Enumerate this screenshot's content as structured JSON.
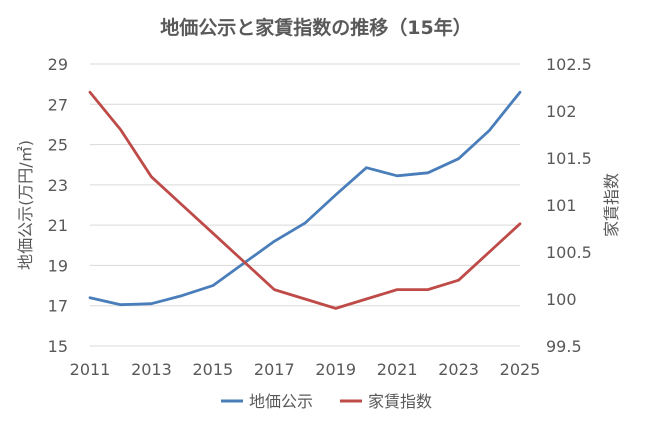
{
  "chart_data": {
    "type": "line",
    "title": "地価公示と家賃指数の推移（15年）",
    "x": [
      2011,
      2012,
      2013,
      2014,
      2015,
      2016,
      2017,
      2018,
      2019,
      2020,
      2021,
      2022,
      2023,
      2024,
      2025
    ],
    "x_tick_labels": [
      "2011",
      "2013",
      "2015",
      "2017",
      "2019",
      "2021",
      "2023",
      "2025"
    ],
    "ylabel_left": "地価公示(万円/㎡)",
    "ylabel_right": "家賃指数",
    "y_left_range": [
      15,
      29
    ],
    "y_left_ticks": [
      "15",
      "17",
      "19",
      "21",
      "23",
      "25",
      "27",
      "29"
    ],
    "y_right_range": [
      99.5,
      102.5
    ],
    "y_right_ticks": [
      "99.5",
      "100",
      "100.5",
      "101",
      "101.5",
      "102",
      "102.5"
    ],
    "grid": "horizontal",
    "legend_position": "bottom",
    "series": [
      {
        "name": "地価公示",
        "axis": "left",
        "color": "#4a7ebb",
        "values": [
          17.4,
          17.05,
          17.1,
          17.5,
          18.0,
          19.1,
          20.2,
          21.1,
          22.5,
          23.85,
          23.45,
          23.6,
          24.3,
          25.7,
          27.6
        ]
      },
      {
        "name": "家賃指数",
        "axis": "right",
        "color": "#be4b48",
        "values": [
          102.2,
          101.8,
          101.3,
          101.0,
          100.7,
          100.4,
          100.1,
          100.0,
          99.9,
          100.0,
          100.1,
          100.1,
          100.2,
          100.5,
          100.8
        ]
      }
    ]
  }
}
